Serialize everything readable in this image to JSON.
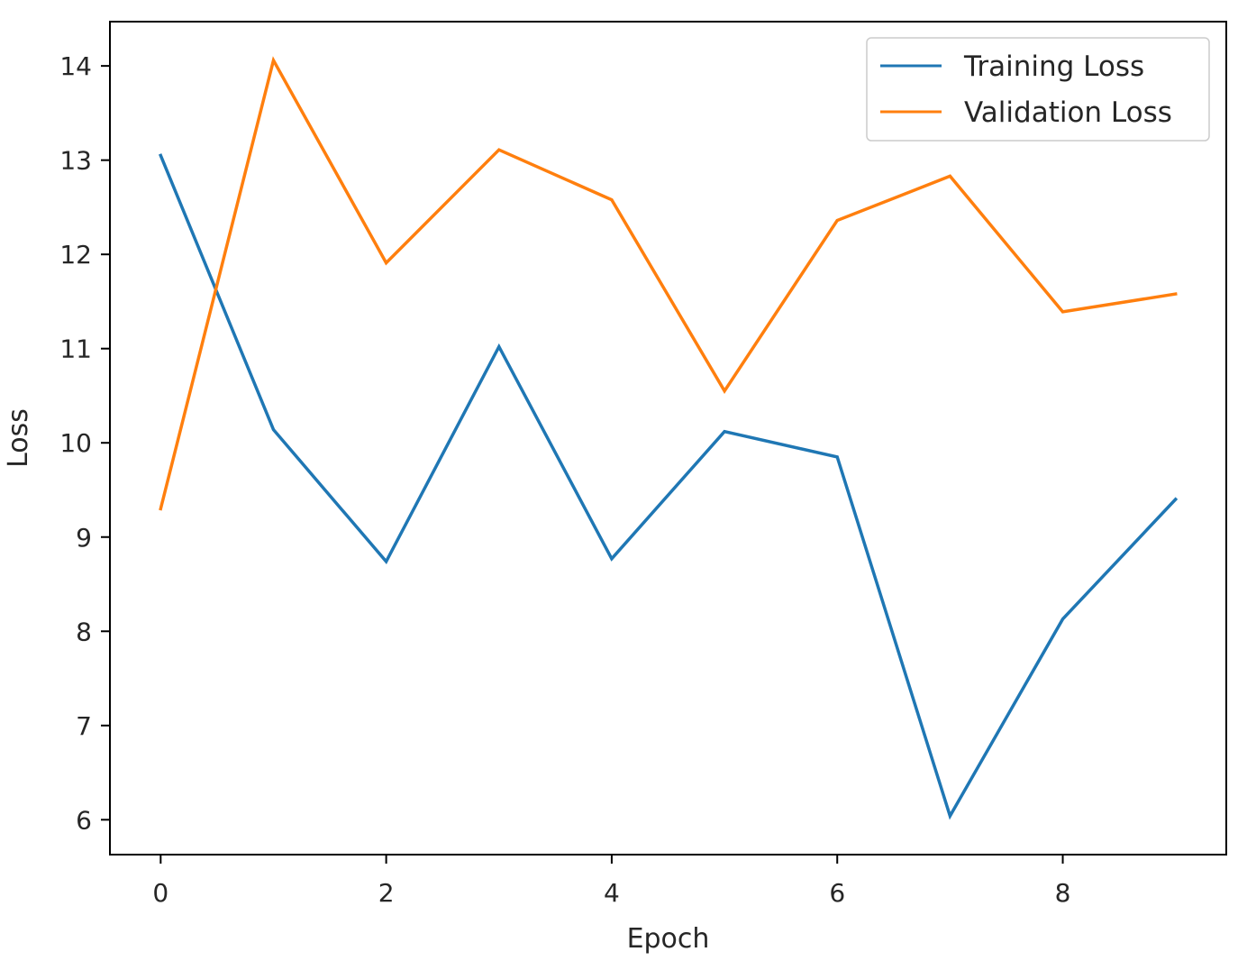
{
  "chart_data": {
    "type": "line",
    "title": "",
    "xlabel": "Epoch",
    "ylabel": "Loss",
    "x": [
      0,
      1,
      2,
      3,
      4,
      5,
      6,
      7,
      8,
      9
    ],
    "xlim": [
      -0.45,
      9.45
    ],
    "ylim": [
      5.63,
      14.47
    ],
    "xticks": [
      0,
      2,
      4,
      6,
      8
    ],
    "yticks": [
      6,
      7,
      8,
      9,
      10,
      11,
      12,
      13,
      14
    ],
    "grid": false,
    "legend_position": "top-right",
    "series": [
      {
        "name": "Training Loss",
        "color": "#1f77b4",
        "values": [
          13.05,
          10.14,
          8.74,
          11.02,
          8.77,
          10.12,
          9.85,
          6.04,
          8.13,
          9.4
        ]
      },
      {
        "name": "Validation Loss",
        "color": "#ff7f0e",
        "values": [
          9.3,
          14.06,
          11.91,
          13.11,
          12.58,
          10.55,
          12.36,
          12.83,
          11.39,
          11.58
        ]
      }
    ]
  }
}
